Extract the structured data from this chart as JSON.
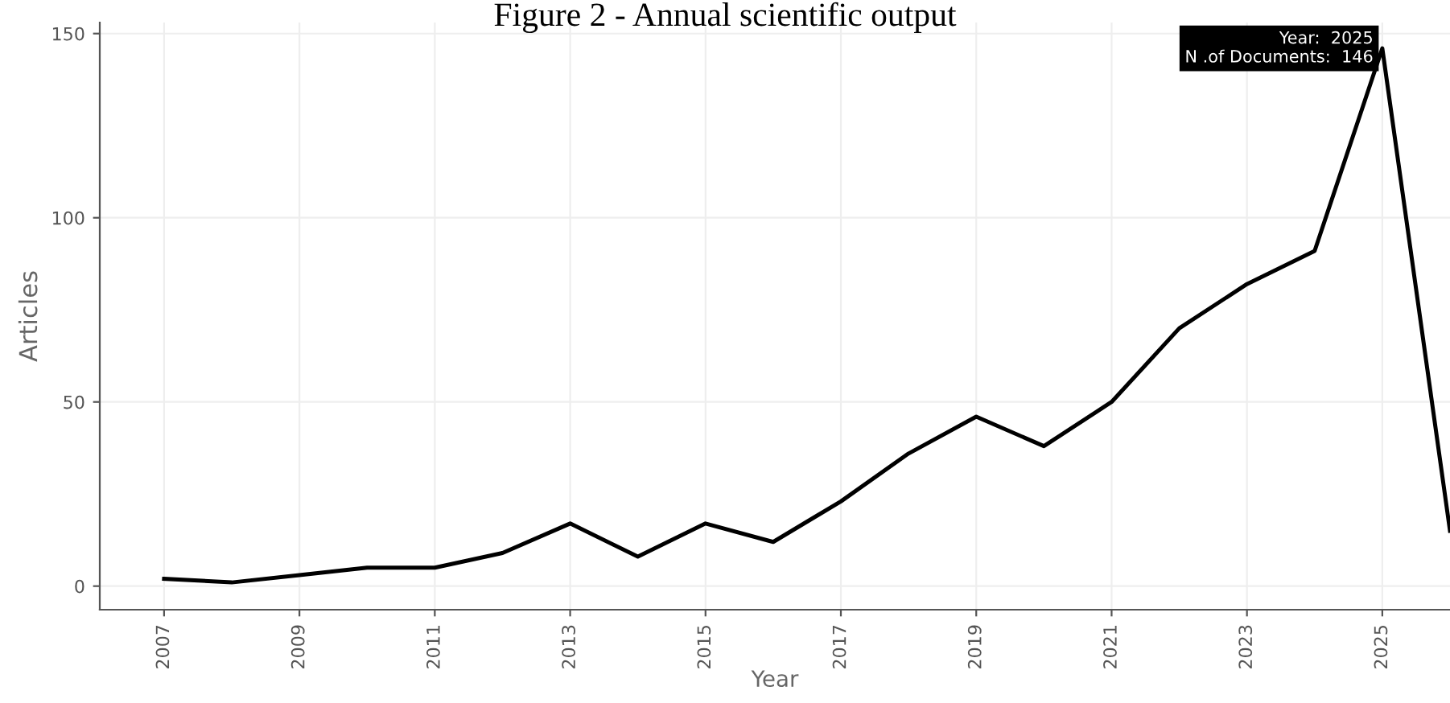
{
  "chart_data": {
    "type": "line",
    "title": "Figure 2 - Annual scientific output",
    "xlabel": "Year",
    "ylabel": "Articles",
    "x": [
      2007,
      2008,
      2009,
      2010,
      2011,
      2012,
      2013,
      2014,
      2015,
      2016,
      2017,
      2018,
      2019,
      2020,
      2021,
      2022,
      2023,
      2024,
      2025,
      2026
    ],
    "series": [
      {
        "color": "#000000",
        "values": [
          2,
          1,
          3,
          5,
          5,
          9,
          17,
          8,
          17,
          12,
          23,
          36,
          46,
          38,
          50,
          70,
          82,
          91,
          146,
          15
        ]
      }
    ],
    "xlim": [
      2006.05,
      2026
    ],
    "xticks": [
      2007,
      2009,
      2011,
      2013,
      2015,
      2017,
      2019,
      2021,
      2023,
      2025
    ],
    "ylim": [
      -6.4,
      153
    ],
    "yticks": [
      0,
      50,
      100,
      150
    ],
    "grid": true,
    "marker": "none",
    "line_style": "solid",
    "annotations": [
      {
        "text": "Year:  2025\nN .of Documents:  146",
        "x": 2025,
        "y": 146
      }
    ]
  }
}
